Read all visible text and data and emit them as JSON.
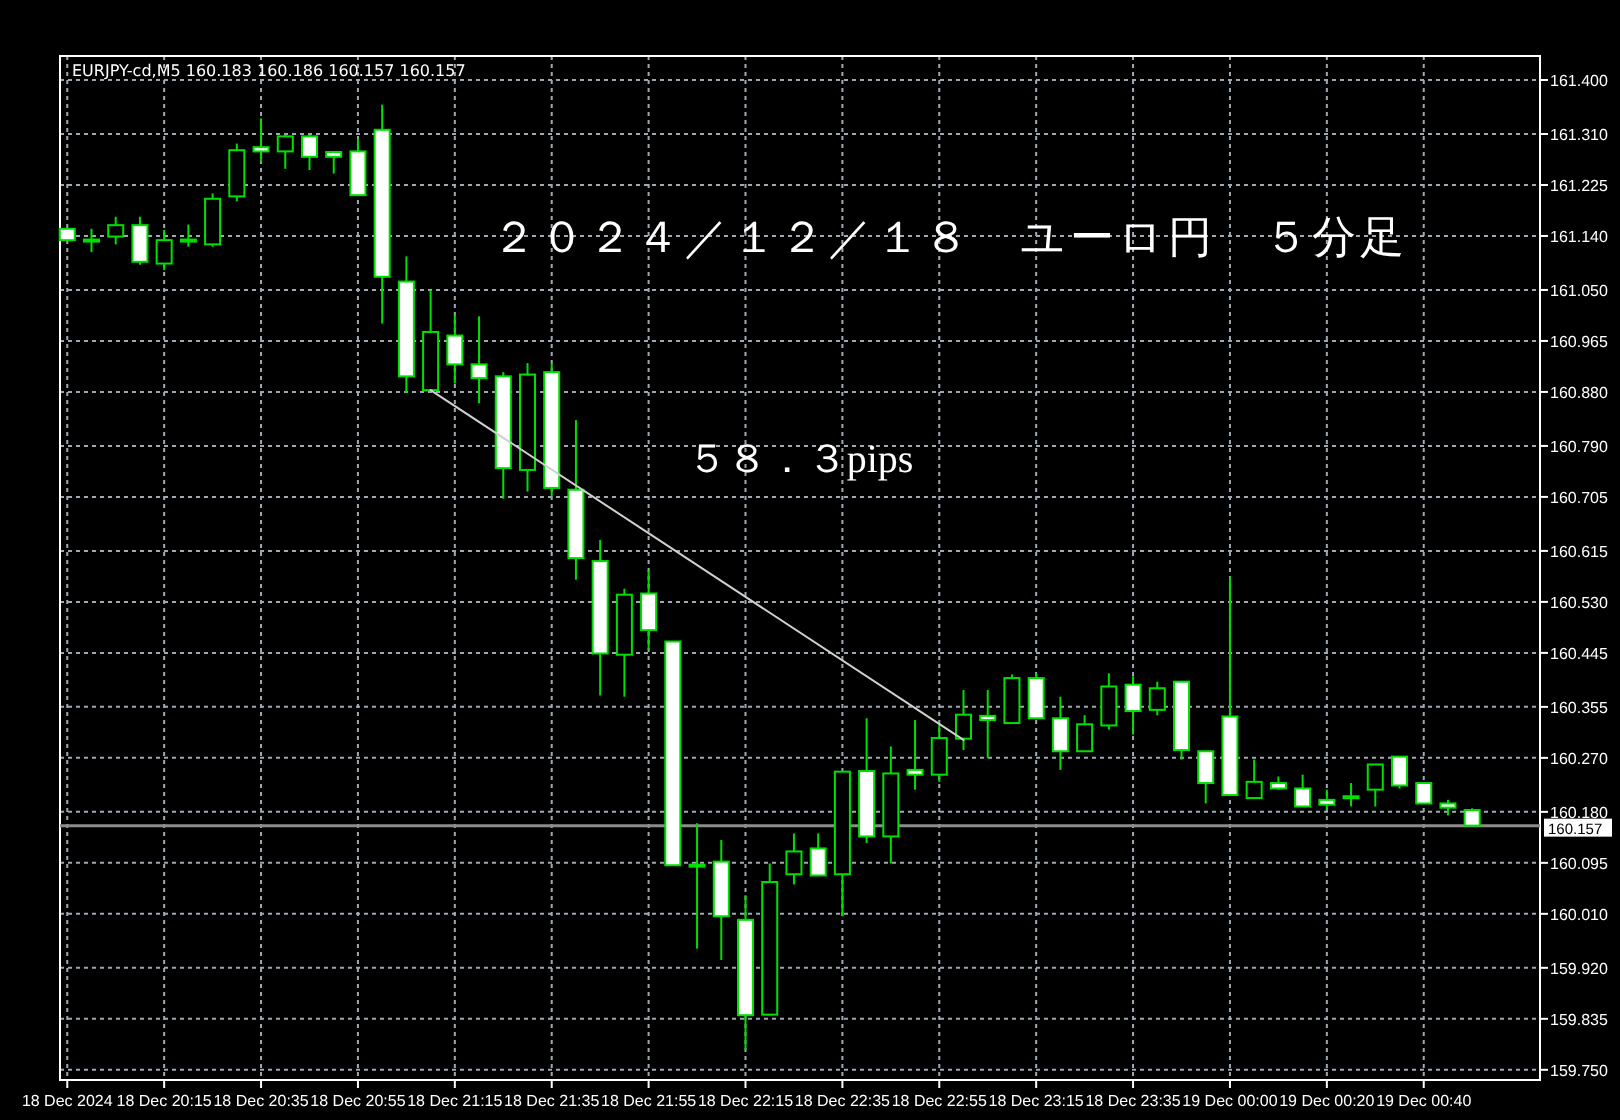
{
  "chart_data": {
    "type": "candlestick",
    "title": "２０２４／１２／１８　ユーロ円　５分足",
    "subtitle": "EURJPY-cd,M5  160.183 160.186 160.157 160.157",
    "annotations": [
      "５８．３pips"
    ],
    "categories": [
      "18 Dec 2024",
      null,
      null,
      null,
      "18 Dec 20:15",
      null,
      null,
      null,
      "18 Dec 20:35",
      null,
      null,
      null,
      "18 Dec 20:55",
      null,
      null,
      null,
      "18 Dec 21:15",
      null,
      null,
      null,
      "18 Dec 21:35",
      null,
      null,
      null,
      "18 Dec 21:55",
      null,
      null,
      null,
      "18 Dec 22:15",
      null,
      null,
      null,
      "18 Dec 22:35",
      null,
      null,
      null,
      "18 Dec 22:55",
      null,
      null,
      null,
      "18 Dec 23:15",
      null,
      null,
      null,
      "18 Dec 23:35",
      null,
      null,
      null,
      "19 Dec 00:00",
      null,
      null,
      null,
      "19 Dec 00:20",
      null,
      null,
      null,
      "19 Dec 00:40",
      null,
      null
    ],
    "ylim": [
      159.733,
      161.44
    ],
    "yticks": [
      {
        "value": 159.75,
        "label": "159.750"
      },
      {
        "value": 159.835,
        "label": "159.835"
      },
      {
        "value": 159.92,
        "label": "159.920"
      },
      {
        "value": 160.01,
        "label": "160.010"
      },
      {
        "value": 160.095,
        "label": "160.095"
      },
      {
        "value": 160.18,
        "label": "160.180"
      },
      {
        "value": 160.27,
        "label": "160.270"
      },
      {
        "value": 160.355,
        "label": "160.355"
      },
      {
        "value": 160.445,
        "label": "160.445"
      },
      {
        "value": 160.53,
        "label": "160.530"
      },
      {
        "value": 160.615,
        "label": "160.615"
      },
      {
        "value": 160.705,
        "label": "160.705"
      },
      {
        "value": 160.79,
        "label": "160.790"
      },
      {
        "value": 160.88,
        "label": "160.880"
      },
      {
        "value": 160.965,
        "label": "160.965"
      },
      {
        "value": 161.05,
        "label": "161.050"
      },
      {
        "value": 161.14,
        "label": "161.140"
      },
      {
        "value": 161.225,
        "label": "161.225"
      },
      {
        "value": 161.31,
        "label": "161.310"
      },
      {
        "value": 161.4,
        "label": "161.400"
      }
    ],
    "grid": true,
    "ref_lines": [
      {
        "axis": "y",
        "value": 160.157,
        "label": "160.157",
        "color": "#8c8c8c"
      }
    ],
    "series": [
      {
        "type": "line",
        "color": "#d0d0d0",
        "values": [
          null,
          null,
          null,
          null,
          null,
          null,
          null,
          null,
          null,
          null,
          null,
          null,
          null,
          null,
          null,
          160.883,
          null,
          null,
          null,
          null,
          null,
          null,
          null,
          null,
          null,
          null,
          null,
          null,
          null,
          null,
          null,
          null,
          null,
          null,
          null,
          null,
          null,
          160.3,
          null,
          null,
          null,
          null,
          null,
          null,
          null,
          null,
          null,
          null,
          null,
          null,
          null,
          null,
          null,
          null,
          null,
          null,
          null,
          null,
          null
        ]
      },
      {
        "color": "#00e000",
        "ohlc": [
          [
            161.152,
            161.152,
            161.133,
            161.133
          ],
          [
            161.133,
            161.152,
            161.113,
            161.134
          ],
          [
            161.139,
            161.172,
            161.126,
            161.158
          ],
          [
            161.158,
            161.172,
            161.092,
            161.097
          ],
          [
            161.094,
            161.15,
            161.083,
            161.133
          ],
          [
            161.134,
            161.159,
            161.122,
            161.133
          ],
          [
            161.126,
            161.211,
            161.122,
            161.202
          ],
          [
            161.206,
            161.294,
            161.198,
            161.283
          ],
          [
            161.288,
            161.336,
            161.263,
            161.281
          ],
          [
            161.281,
            161.309,
            161.252,
            161.306
          ],
          [
            161.306,
            161.309,
            161.25,
            161.272
          ],
          [
            161.28,
            161.281,
            161.244,
            161.272
          ],
          [
            161.281,
            161.302,
            161.208,
            161.208
          ],
          [
            161.317,
            161.359,
            160.994,
            161.072
          ],
          [
            161.064,
            161.106,
            160.878,
            160.906
          ],
          [
            160.883,
            161.05,
            160.881,
            160.98
          ],
          [
            160.974,
            161.009,
            160.894,
            160.926
          ],
          [
            160.926,
            161.006,
            160.861,
            160.903
          ],
          [
            160.906,
            160.913,
            160.702,
            160.753
          ],
          [
            160.75,
            160.928,
            160.714,
            160.909
          ],
          [
            160.913,
            160.928,
            160.706,
            160.72
          ],
          [
            160.717,
            160.833,
            160.567,
            160.603
          ],
          [
            160.598,
            160.633,
            160.374,
            160.444
          ],
          [
            160.442,
            160.552,
            160.372,
            160.542
          ],
          [
            160.544,
            160.583,
            160.45,
            160.483
          ],
          [
            160.464,
            160.464,
            160.091,
            160.091
          ],
          [
            160.092,
            160.161,
            159.952,
            160.092
          ],
          [
            160.097,
            160.133,
            159.933,
            160.006
          ],
          [
            160.0,
            160.041,
            159.783,
            159.841
          ],
          [
            159.842,
            160.094,
            159.842,
            160.063
          ],
          [
            160.076,
            160.144,
            160.059,
            160.114
          ],
          [
            160.119,
            160.144,
            160.074,
            160.074
          ],
          [
            160.076,
            160.247,
            160.006,
            160.247
          ],
          [
            160.248,
            160.336,
            160.128,
            160.139
          ],
          [
            160.139,
            160.289,
            160.094,
            160.244
          ],
          [
            160.25,
            160.333,
            160.217,
            160.242
          ],
          [
            160.242,
            160.326,
            160.23,
            160.303
          ],
          [
            160.302,
            160.383,
            160.283,
            160.342
          ],
          [
            160.34,
            160.383,
            160.27,
            160.333
          ],
          [
            160.328,
            160.409,
            160.328,
            160.403
          ],
          [
            160.403,
            160.411,
            160.336,
            160.336
          ],
          [
            160.336,
            160.372,
            160.25,
            160.281
          ],
          [
            160.281,
            160.341,
            160.281,
            160.326
          ],
          [
            160.324,
            160.411,
            160.317,
            160.389
          ],
          [
            160.392,
            160.406,
            160.309,
            160.348
          ],
          [
            160.35,
            160.397,
            160.341,
            160.386
          ],
          [
            160.397,
            160.397,
            160.267,
            160.283
          ],
          [
            160.281,
            160.281,
            160.194,
            160.228
          ],
          [
            160.339,
            160.572,
            160.208,
            160.208
          ],
          [
            160.203,
            160.267,
            160.203,
            160.23
          ],
          [
            160.228,
            160.239,
            160.217,
            160.219
          ],
          [
            160.219,
            160.242,
            160.189,
            160.189
          ],
          [
            160.2,
            160.217,
            160.183,
            160.192
          ],
          [
            160.206,
            160.228,
            160.189,
            160.206
          ],
          [
            160.217,
            160.259,
            160.189,
            160.259
          ],
          [
            160.272,
            160.272,
            160.219,
            160.224
          ],
          [
            160.228,
            160.228,
            160.194,
            160.194
          ],
          [
            160.194,
            160.2,
            160.174,
            160.187
          ],
          [
            160.183,
            160.186,
            160.157,
            160.157
          ]
        ]
      }
    ]
  }
}
